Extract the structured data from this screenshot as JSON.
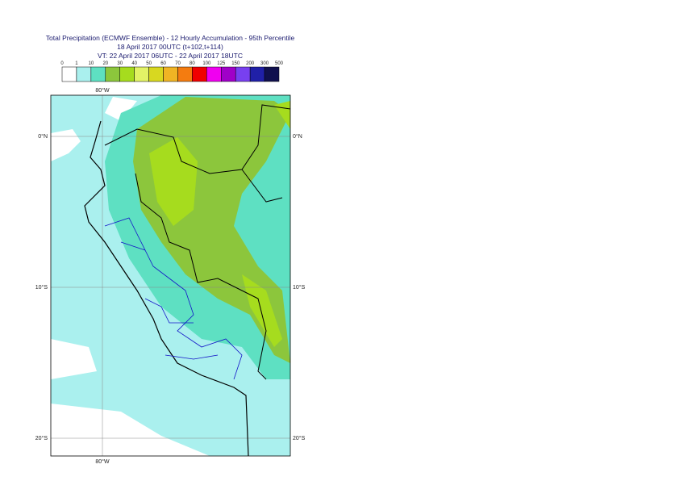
{
  "header": {
    "title": "Total Precipitation (ECMWF Ensemble) - 12 Hourly Accumulation - 95th Percentile",
    "subtitle": "18 April 2017 00UTC (t+102,t+114)",
    "valid_time": "VT: 22 April 2017 06UTC - 22 April 2017 18UTC"
  },
  "legend": {
    "ticks": [
      0,
      1,
      10,
      20,
      30,
      40,
      50,
      60,
      70,
      80,
      100,
      125,
      150,
      200,
      300,
      500
    ],
    "colors": [
      "#ffffff",
      "#aaf0ee",
      "#5ee0c2",
      "#8cc63c",
      "#a6dc1e",
      "#e2f266",
      "#d8d820",
      "#f0b424",
      "#f47c10",
      "#f00000",
      "#f000f0",
      "#a000c8",
      "#7840f0",
      "#2020a8",
      "#10104e"
    ]
  },
  "map": {
    "lon_labels": [
      "80°W"
    ],
    "lat_labels": [
      "0°N",
      "10°S",
      "20°S"
    ]
  }
}
